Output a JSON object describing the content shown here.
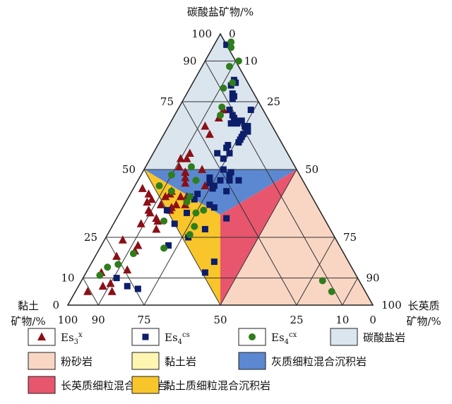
{
  "chart_data": {
    "type": "scatter",
    "subtype": "ternary",
    "apex_labels": {
      "top": "碳酸盐矿物/%",
      "left": [
        "黏土",
        "矿物/%"
      ],
      "right": [
        "长英质",
        "矿物/%"
      ]
    },
    "axis_ticks": {
      "left_edge": [
        "100",
        "90",
        "75",
        "50",
        "25",
        "10",
        "0"
      ],
      "right_edge": [
        "0",
        "10",
        "25",
        "50",
        "75",
        "90",
        "100"
      ],
      "bottom_edge": [
        "100",
        "90",
        "75",
        "50",
        "25",
        "10",
        "0"
      ],
      "tick_values": [
        100,
        90,
        75,
        50,
        25,
        10,
        0
      ]
    },
    "grid": true,
    "regions": [
      {
        "name": "碳酸盐岩",
        "color": "#dbe5ee",
        "rule": "carbonate >= 50"
      },
      {
        "name": "粉砂岩",
        "color": "#f9d6c4",
        "rule": "felsic >= 50"
      },
      {
        "name": "黏土岩",
        "color": "#fdf5b0",
        "rule": "clay >= 50"
      },
      {
        "name": "灰质细粒混合沉积岩",
        "color": "#5b88d0",
        "rule": "all < 50, carbonate dominant"
      },
      {
        "name": "长英质细粒混合沉积岩",
        "color": "#e8566d",
        "rule": "all < 50, felsic dominant"
      },
      {
        "name": "黏土质细粒混合沉积岩",
        "color": "#f8c52a",
        "rule": "all < 50, clay dominant"
      }
    ],
    "series": [
      {
        "name": "Es3x",
        "name_base": "Es",
        "name_sub": "3",
        "name_sup": "x",
        "marker": "triangle",
        "color": "#8b0f16",
        "points_carbonate_felsic": [
          [
            72,
            15
          ],
          [
            69,
            15
          ],
          [
            66,
            12
          ],
          [
            63,
            15
          ],
          [
            56,
            12
          ],
          [
            54,
            12
          ],
          [
            54,
            10
          ],
          [
            51,
            11
          ],
          [
            49,
            14
          ],
          [
            47,
            15
          ],
          [
            45,
            16
          ],
          [
            44,
            23
          ],
          [
            43,
            3
          ],
          [
            42,
            13
          ],
          [
            41,
            6
          ],
          [
            41,
            13
          ],
          [
            40,
            12
          ],
          [
            40,
            17
          ],
          [
            40,
            19
          ],
          [
            39,
            8
          ],
          [
            38,
            7
          ],
          [
            37,
            12
          ],
          [
            37,
            17
          ],
          [
            37,
            20
          ],
          [
            36,
            16
          ],
          [
            35,
            16
          ],
          [
            35,
            9
          ],
          [
            34,
            10
          ],
          [
            32,
            13
          ],
          [
            31,
            14
          ],
          [
            30,
            9
          ],
          [
            28,
            15
          ],
          [
            24,
            6
          ],
          [
            22,
            12
          ],
          [
            20,
            12
          ],
          [
            18,
            7
          ],
          [
            13,
            13
          ],
          [
            12,
            5
          ],
          [
            8,
            10
          ],
          [
            7,
            8
          ],
          [
            5,
            4
          ],
          [
            5,
            12
          ],
          [
            50,
            19
          ],
          [
            49,
            14
          ]
        ]
      },
      {
        "name": "Es4cs",
        "name_base": "Es",
        "name_sub": "4",
        "name_sup": "cs",
        "marker": "square",
        "color": "#0d1e6b",
        "points_carbonate_felsic": [
          [
            96,
            4
          ],
          [
            83,
            13
          ],
          [
            82,
            14
          ],
          [
            81,
            13
          ],
          [
            78,
            15
          ],
          [
            77,
            16
          ],
          [
            76,
            16
          ],
          [
            72,
            24
          ],
          [
            72,
            17
          ],
          [
            70,
            19
          ],
          [
            69,
            20
          ],
          [
            68,
            21
          ],
          [
            68,
            23
          ],
          [
            67,
            20
          ],
          [
            67,
            22
          ],
          [
            66,
            25
          ],
          [
            66,
            26
          ],
          [
            65,
            26
          ],
          [
            64,
            27
          ],
          [
            63,
            26
          ],
          [
            62,
            26
          ],
          [
            61,
            26
          ],
          [
            60,
            26
          ],
          [
            59,
            23
          ],
          [
            58,
            23
          ],
          [
            56,
            21
          ],
          [
            56,
            25
          ],
          [
            54,
            24
          ],
          [
            50,
            26
          ],
          [
            49,
            29
          ],
          [
            48,
            29
          ],
          [
            47,
            23
          ],
          [
            46,
            30
          ],
          [
            46,
            27
          ],
          [
            46,
            33
          ],
          [
            45,
            24
          ],
          [
            44,
            26
          ],
          [
            43,
            26
          ],
          [
            42,
            31
          ],
          [
            41,
            22
          ],
          [
            40,
            20
          ],
          [
            39,
            22
          ],
          [
            37,
            28
          ],
          [
            36,
            30
          ],
          [
            35,
            15
          ],
          [
            34,
            22
          ],
          [
            32,
            36
          ],
          [
            30,
            20
          ],
          [
            28,
            31
          ],
          [
            25,
            27
          ],
          [
            22,
            22
          ],
          [
            16,
            40
          ],
          [
            12,
            39
          ],
          [
            10,
            11
          ],
          [
            7,
            16
          ],
          [
            6,
            20
          ]
        ]
      },
      {
        "name": "Es4cx",
        "name_base": "Es",
        "name_sub": "4",
        "name_sup": "cx",
        "marker": "circle",
        "color": "#2f7d1d",
        "points_carbonate_felsic": [
          [
            97,
            5
          ],
          [
            95,
            6
          ],
          [
            90,
            11
          ],
          [
            88,
            9
          ],
          [
            82,
            13
          ],
          [
            80,
            11
          ],
          [
            73,
            14
          ],
          [
            70,
            15
          ],
          [
            51,
            15
          ],
          [
            48,
            10
          ],
          [
            46,
            19
          ],
          [
            44,
            8
          ],
          [
            42,
            13
          ],
          [
            40,
            20
          ],
          [
            38,
            20
          ],
          [
            35,
            27
          ],
          [
            34,
            25
          ],
          [
            31,
            16
          ],
          [
            29,
            27
          ],
          [
            26,
            27
          ],
          [
            21,
            21
          ],
          [
            19,
            12
          ],
          [
            15,
            9
          ],
          [
            14,
            6
          ],
          [
            11,
            5
          ],
          [
            9,
            79
          ],
          [
            5,
            84
          ]
        ]
      }
    ]
  },
  "legend": {
    "row1": [
      {
        "kind": "series",
        "index": 0
      },
      {
        "kind": "series",
        "index": 1
      },
      {
        "kind": "series",
        "index": 2
      },
      {
        "kind": "region",
        "label": "碳酸盐岩",
        "color": "#dbe5ee"
      }
    ],
    "row2": [
      {
        "kind": "region",
        "label": "粉砂岩",
        "color": "#f9d6c4"
      },
      {
        "kind": "region",
        "label": "黏土岩",
        "color": "#fdf5b0"
      },
      {
        "kind": "region",
        "label": "灰质细粒混合沉积岩",
        "color": "#5b88d0"
      }
    ],
    "row3": [
      {
        "kind": "region",
        "label": "长英质细粒混合沉积岩",
        "color": "#e8566d"
      },
      {
        "kind": "region",
        "label": "黏土质细粒混合沉积岩",
        "color": "#f8c52a"
      }
    ]
  }
}
